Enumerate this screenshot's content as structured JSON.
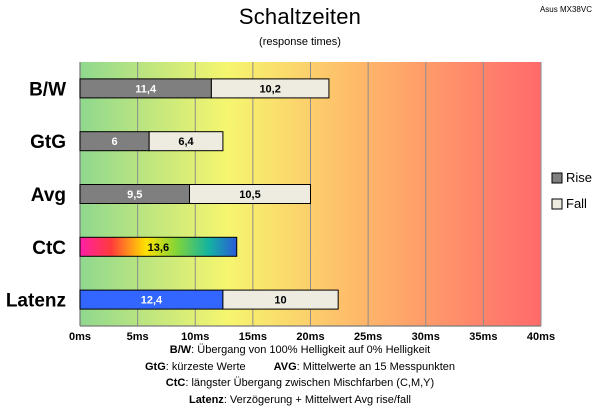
{
  "chart_data": {
    "type": "bar",
    "orientation": "horizontal",
    "stacked": true,
    "title": "Schaltzeiten",
    "subtitle": "(response times)",
    "model": "Asus MX38VC",
    "categories": [
      "B/W",
      "GtG",
      "Avg",
      "CtC",
      "Latenz"
    ],
    "series": [
      {
        "name": "Rise",
        "values": [
          11.4,
          6,
          9.5,
          13.6,
          12.4
        ],
        "labels": [
          "11,4",
          "6",
          "9,5",
          "13,6",
          "12,4"
        ],
        "color": "#7f7f7f"
      },
      {
        "name": "Fall",
        "values": [
          10.2,
          6.4,
          10.5,
          null,
          10
        ],
        "labels": [
          "10,2",
          "6,4",
          "10,5",
          "",
          "10"
        ],
        "color": "#eeece1"
      }
    ],
    "special_colors": {
      "CtC": "rainbow",
      "Latenz": "#3366ff"
    },
    "xlim": [
      0,
      40
    ],
    "xticks": [
      "0ms",
      "5ms",
      "10ms",
      "15ms",
      "20ms",
      "25ms",
      "30ms",
      "35ms",
      "40ms"
    ],
    "grid": true,
    "legend_position": "right",
    "background_gradient": [
      "#8ed88e",
      "#f6f66e",
      "#ff6a6a"
    ]
  },
  "notes": {
    "bw_key": "B/W",
    "bw_text": ":  Übergang von 100% Helligkeit auf 0% Helligkeit",
    "gtg_key": "GtG",
    "gtg_text": ": kürzeste  Werte",
    "avg_key": "AVG",
    "avg_text": ": Mittelwerte  an 15 Messpunkten",
    "ctc_key": "CtC",
    "ctc_text": ": längster Übergang  zwischen Mischfarben (C,M,Y)",
    "lat_key": "Latenz",
    "lat_text": ": Verzögerung  + Mittelwert  Avg rise/fall"
  }
}
